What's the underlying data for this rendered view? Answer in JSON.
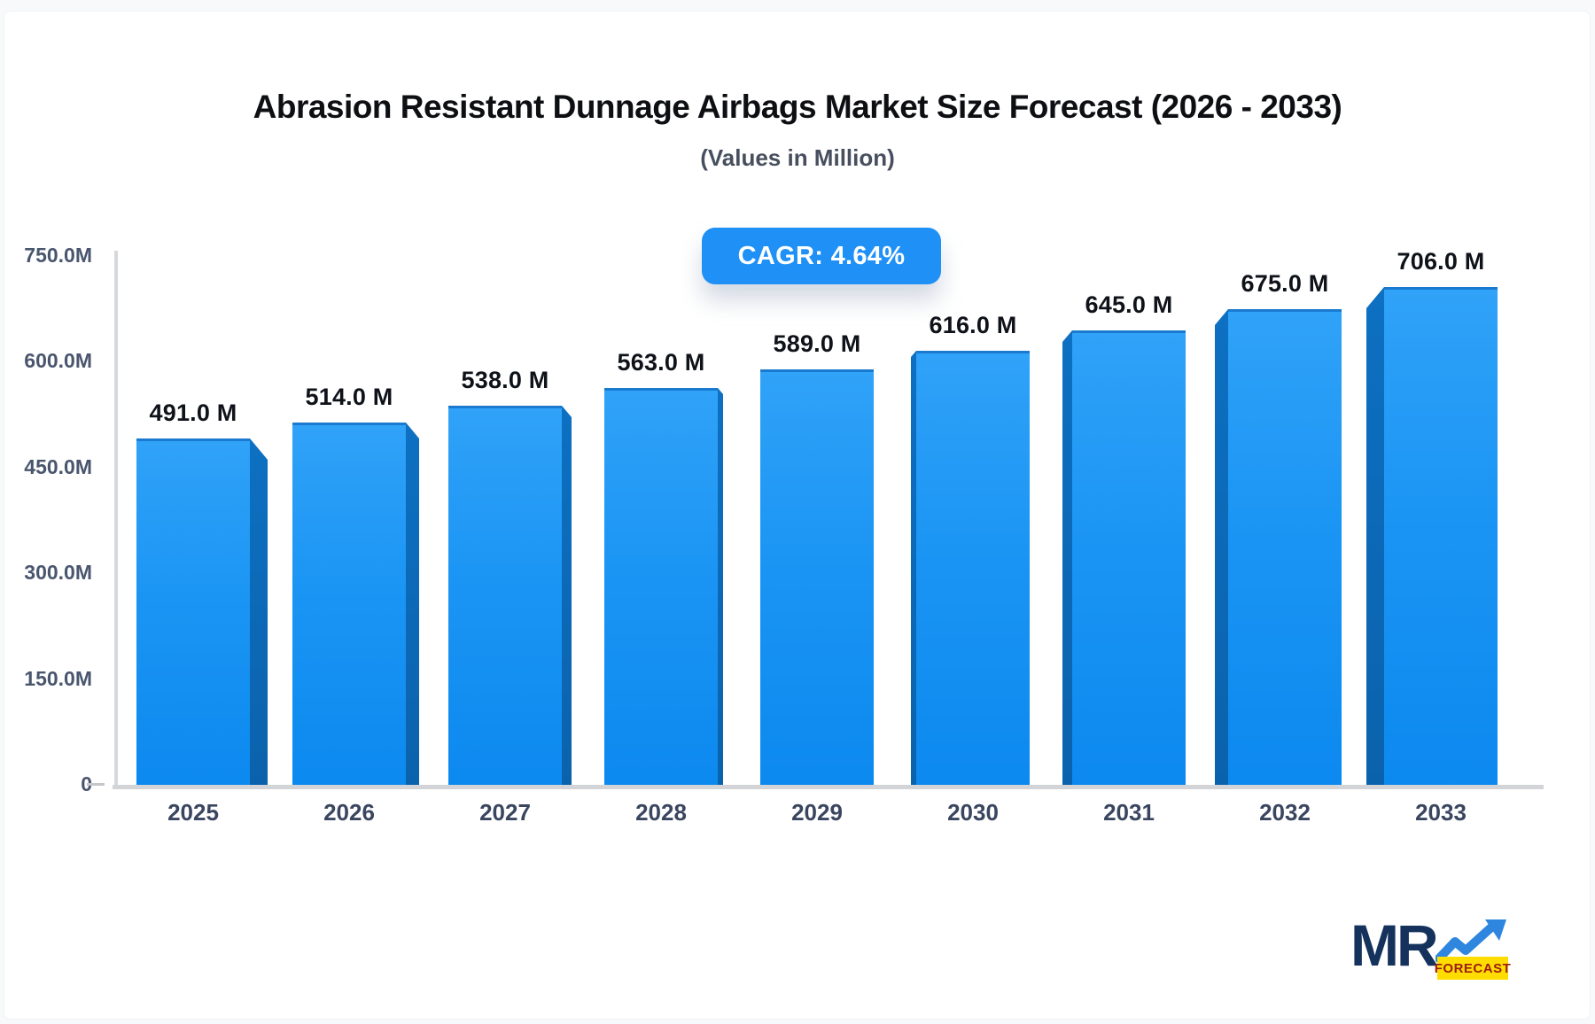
{
  "header": {
    "title": "Abrasion Resistant Dunnage Airbags Market Size Forecast (2026 - 2033)",
    "subtitle": "(Values in Million)"
  },
  "badge": {
    "label": "CAGR: 4.64%",
    "bg_color": "#1E90F6"
  },
  "logo": {
    "mr_text": "MR",
    "forecast_text": "FORECAST",
    "trend_icon": "trend-arrow-icon",
    "navy": "#15325C",
    "arrow_blue": "#2E86DE",
    "yellow": "#FFDD00"
  },
  "colors": {
    "bar_face_top": "#30A2F8",
    "bar_face_bottom": "#0C89EF",
    "bar_side": "#0D70C2",
    "axis_line": "#D6D9DC",
    "ytick_text": "#49566E",
    "year_text": "#3A4660",
    "value_text": "#0F1319",
    "card_bg": "#FFFFFF",
    "page_bg": "#F7F9FB"
  },
  "chart_data": {
    "type": "bar",
    "title": "Abrasion Resistant Dunnage Airbags Market Size Forecast (2026 - 2033)",
    "subtitle": "(Values in Million)",
    "cagr_annotation": "CAGR: 4.64%",
    "categories": [
      "2025",
      "2026",
      "2027",
      "2028",
      "2029",
      "2030",
      "2031",
      "2032",
      "2033"
    ],
    "values": [
      491,
      514,
      538,
      563,
      589,
      616,
      645,
      675,
      706
    ],
    "value_labels": [
      "491.0 M",
      "514.0 M",
      "538.0 M",
      "563.0 M",
      "589.0 M",
      "616.0 M",
      "645.0 M",
      "675.0 M",
      "706.0 M"
    ],
    "yticks": [
      {
        "value": 750,
        "label": "750.0M"
      },
      {
        "value": 600,
        "label": "600.0M"
      },
      {
        "value": 450,
        "label": "450.0M"
      },
      {
        "value": 300,
        "label": "300.0M"
      },
      {
        "value": 150,
        "label": "150.0M"
      },
      {
        "value": 0,
        "label": "0"
      }
    ],
    "ylim": [
      0,
      750
    ],
    "xlabel": "",
    "ylabel": "",
    "grid": false,
    "legend": false,
    "style": "3d-perspective-columns"
  }
}
